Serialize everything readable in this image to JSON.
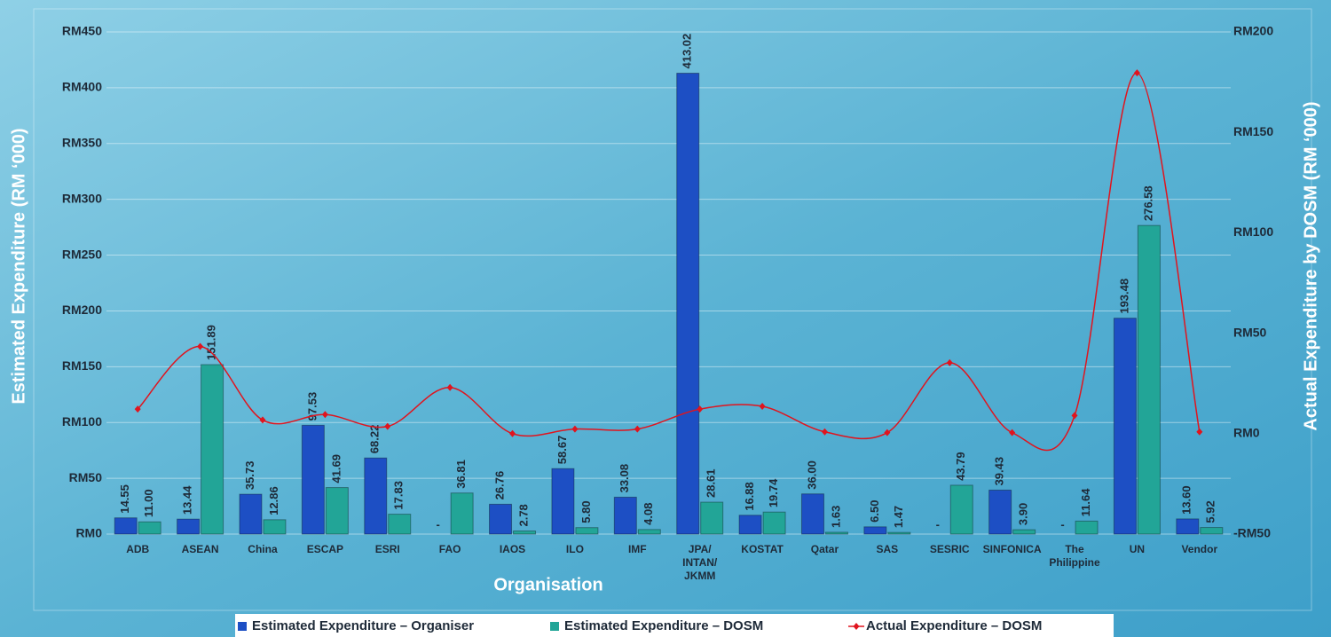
{
  "chart_data": {
    "type": "bar-line",
    "x_label": "Organisation",
    "y_label": "Estimated Expenditure (RM ‘000)",
    "y2_label": "Actual Expenditure by DOSM (RM ‘000)",
    "categories": [
      "ADB",
      "ASEAN",
      "China",
      "ESCAP",
      "ESRI",
      "FAO",
      "IAOS",
      "ILO",
      "IMF",
      "JPA/\nINTAN/\nJKMM",
      "KOSTAT",
      "Qatar",
      "SAS",
      "SESRIC",
      "SINFONICA",
      "The\nPhilippine",
      "UN",
      "Vendor"
    ],
    "series": [
      {
        "name": "Estimated Expenditure – Organiser",
        "type": "bar",
        "color": "#1d4fc4",
        "values": [
          14.55,
          13.44,
          35.73,
          97.53,
          68.22,
          null,
          26.76,
          58.67,
          33.08,
          413.02,
          16.88,
          36.0,
          6.5,
          null,
          39.43,
          null,
          193.48,
          13.6
        ],
        "value_labels": [
          "14.55",
          "13.44",
          "35.73",
          "97.53",
          "68.22",
          "-",
          "26.76",
          "58.67",
          "33.08",
          "413.02",
          "16.88",
          "36.00",
          "6.50",
          "-",
          "39.43",
          "-",
          "193.48",
          "13.60"
        ]
      },
      {
        "name": "Estimated Expenditure – DOSM",
        "type": "bar",
        "color": "#22a597",
        "values": [
          11.0,
          151.89,
          12.86,
          41.69,
          17.83,
          36.81,
          2.78,
          5.8,
          4.08,
          28.61,
          19.74,
          1.63,
          1.47,
          43.79,
          3.9,
          11.64,
          276.58,
          5.92
        ],
        "value_labels": [
          "11.00",
          "151.89",
          "12.86",
          "41.69",
          "17.83",
          "36.81",
          "2.78",
          "5.80",
          "4.08",
          "28.61",
          "19.74",
          "1.63",
          "1.47",
          "43.79",
          "3.90",
          "11.64",
          "276.58",
          "5.92"
        ]
      },
      {
        "name": "Actual Expenditure – DOSM",
        "type": "line",
        "axis": "y2",
        "color": "#e0141e",
        "values": [
          12.2,
          43.4,
          6.8,
          9.5,
          3.6,
          23,
          0,
          2.3,
          2.3,
          12.2,
          13.6,
          0.9,
          0.5,
          35.3,
          0.5,
          9,
          179.6,
          0.9
        ]
      }
    ],
    "ylim": [
      0,
      450
    ],
    "yticks": [
      {
        "value": 0,
        "label": "RM0"
      },
      {
        "value": 50,
        "label": "RM50"
      },
      {
        "value": 100,
        "label": "RM100"
      },
      {
        "value": 150,
        "label": "RM150"
      },
      {
        "value": 200,
        "label": "RM200"
      },
      {
        "value": 250,
        "label": "RM250"
      },
      {
        "value": 300,
        "label": "RM300"
      },
      {
        "value": 350,
        "label": "RM350"
      },
      {
        "value": 400,
        "label": "RM400"
      },
      {
        "value": 450,
        "label": "RM450"
      }
    ],
    "y2lim": [
      -50,
      200
    ],
    "y2ticks": [
      {
        "value": -50,
        "label": "-RM50"
      },
      {
        "value": 0,
        "label": "RM0"
      },
      {
        "value": 50,
        "label": "RM50"
      },
      {
        "value": 100,
        "label": "RM100"
      },
      {
        "value": 150,
        "label": "RM150"
      },
      {
        "value": 200,
        "label": "RM200"
      }
    ],
    "grid": true,
    "legend": "bottom"
  }
}
